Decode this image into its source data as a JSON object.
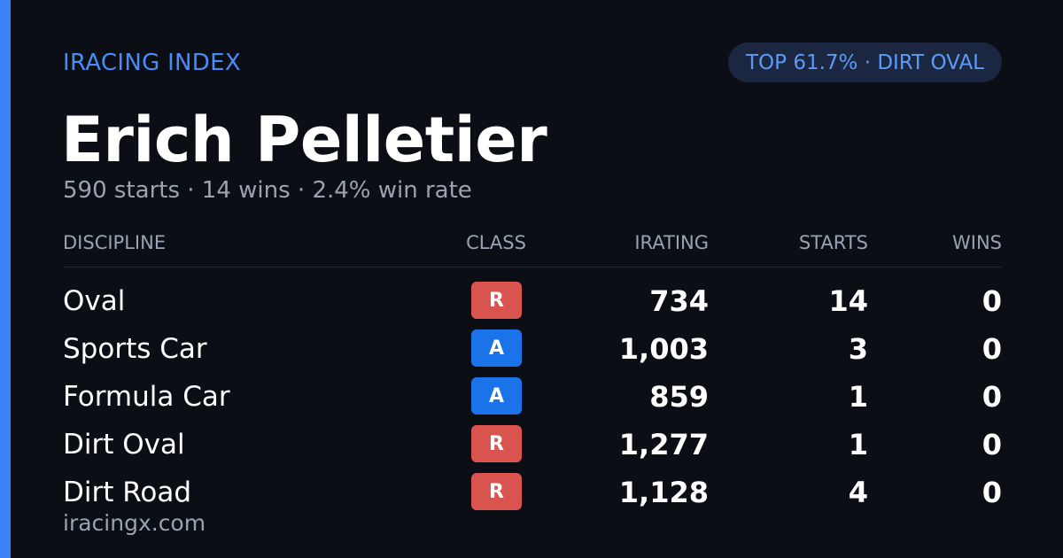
{
  "brand": "IRACING INDEX",
  "badge": "TOP 61.7% · DIRT OVAL",
  "driver": {
    "name": "Erich Pelletier",
    "summary": "590 starts · 14 wins · 2.4% win rate"
  },
  "table": {
    "headers": {
      "discipline": "DISCIPLINE",
      "class": "CLASS",
      "irating": "IRATING",
      "starts": "STARTS",
      "wins": "WINS"
    },
    "rows": [
      {
        "discipline": "Oval",
        "class": "R",
        "irating": "734",
        "starts": "14",
        "wins": "0"
      },
      {
        "discipline": "Sports Car",
        "class": "A",
        "irating": "1,003",
        "starts": "3",
        "wins": "0"
      },
      {
        "discipline": "Formula Car",
        "class": "A",
        "irating": "859",
        "starts": "1",
        "wins": "0"
      },
      {
        "discipline": "Dirt Oval",
        "class": "R",
        "irating": "1,277",
        "starts": "1",
        "wins": "0"
      },
      {
        "discipline": "Dirt Road",
        "class": "R",
        "irating": "1,128",
        "starts": "4",
        "wins": "0"
      }
    ]
  },
  "class_colors": {
    "R": "#d9534f",
    "A": "#1a73e8"
  },
  "footer": "iracingx.com"
}
